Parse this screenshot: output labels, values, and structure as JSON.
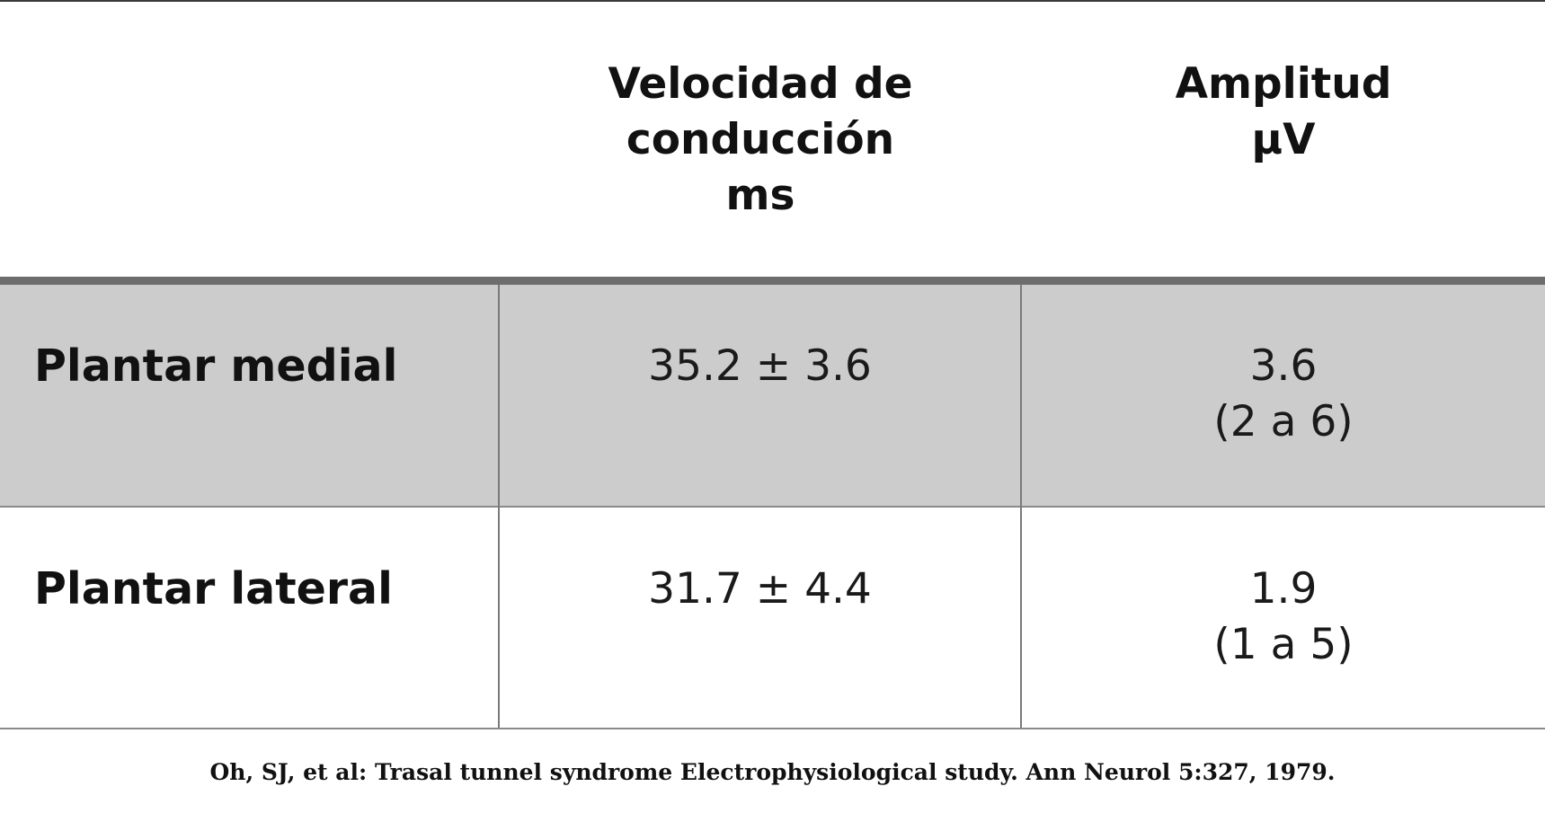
{
  "table": {
    "headers": {
      "label_column": "",
      "velocity": [
        "Velocidad de",
        "conducción",
        "ms"
      ],
      "amplitude": [
        "Amplitud",
        "μV"
      ]
    },
    "rows": [
      {
        "label": "Plantar medial",
        "velocity": "35.2 ± 3.6",
        "amplitude": [
          "3.6",
          "(2 a 6)"
        ]
      },
      {
        "label": "Plantar lateral",
        "velocity": "31.7 ± 4.4",
        "amplitude": [
          "1.9",
          "(1 a 5)"
        ]
      }
    ],
    "colors": {
      "shaded_row": "#cccccc",
      "header_rule": "#6d6d6d"
    }
  },
  "caption": "Oh, SJ, et al: Trasal tunnel syndrome Electrophysiological study. Ann Neurol 5:327, 1979."
}
